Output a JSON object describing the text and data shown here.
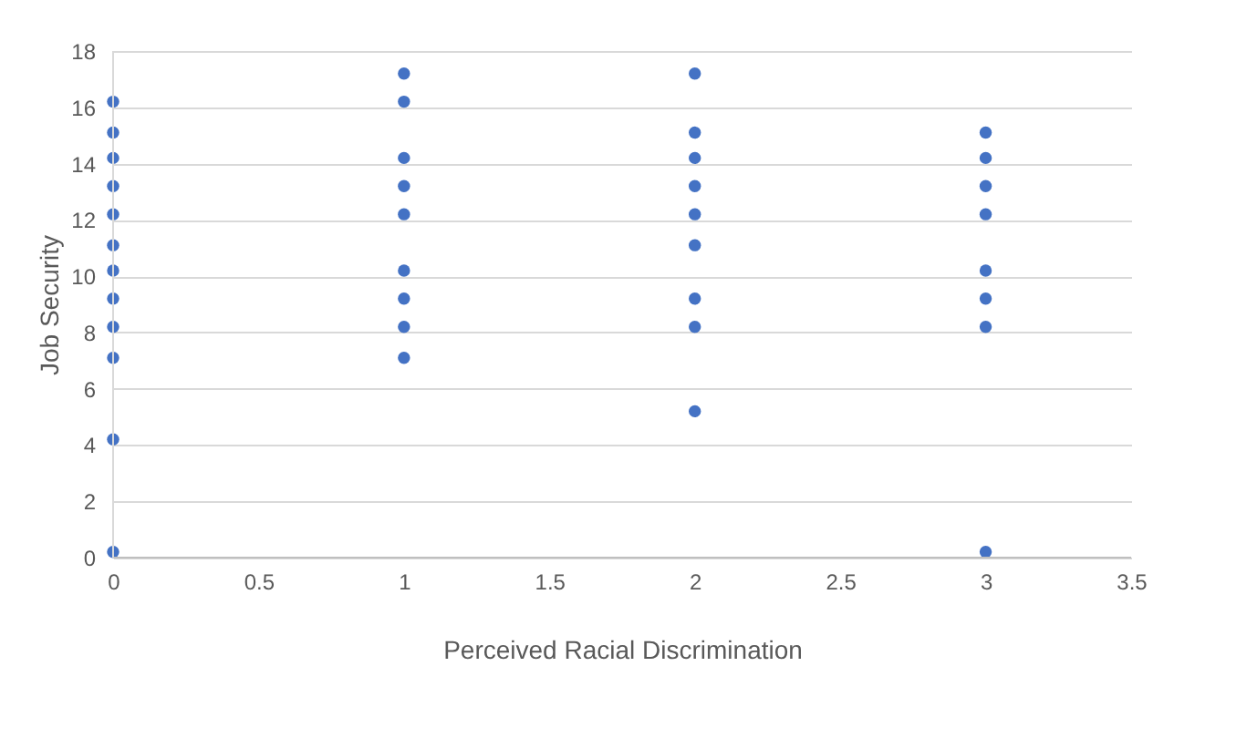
{
  "chart_data": {
    "type": "scatter",
    "xlabel": "Perceived Racial Discrimination",
    "ylabel": "Job Security",
    "x": [
      0,
      0,
      0,
      0,
      0,
      0,
      0,
      0,
      0,
      0,
      0,
      0,
      1,
      1,
      1,
      1,
      1,
      1,
      1,
      1,
      1,
      2,
      2,
      2,
      2,
      2,
      2,
      2,
      2,
      2,
      3,
      3,
      3,
      3,
      3,
      3,
      3,
      3
    ],
    "series": [
      {
        "color": "#4472c4",
        "values": [
          16.2,
          15.1,
          14.2,
          13.2,
          12.2,
          11.1,
          10.2,
          9.2,
          8.2,
          7.1,
          4.2,
          0.2,
          17.2,
          16.2,
          14.2,
          13.2,
          12.2,
          10.2,
          9.2,
          8.2,
          7.1,
          17.2,
          15.1,
          14.2,
          13.2,
          12.2,
          11.1,
          9.2,
          8.2,
          5.2,
          15.1,
          14.2,
          13.2,
          12.2,
          10.2,
          9.2,
          8.2,
          0.2
        ]
      }
    ],
    "xlim": [
      0,
      3.5
    ],
    "xticks": [
      0,
      0.5,
      1,
      1.5,
      2,
      2.5,
      3,
      3.5
    ],
    "ylim": [
      0,
      18
    ],
    "yticks": [
      0,
      2,
      4,
      6,
      8,
      10,
      12,
      14,
      16,
      18
    ],
    "grid": "y",
    "marker": "circle",
    "legend": false
  }
}
